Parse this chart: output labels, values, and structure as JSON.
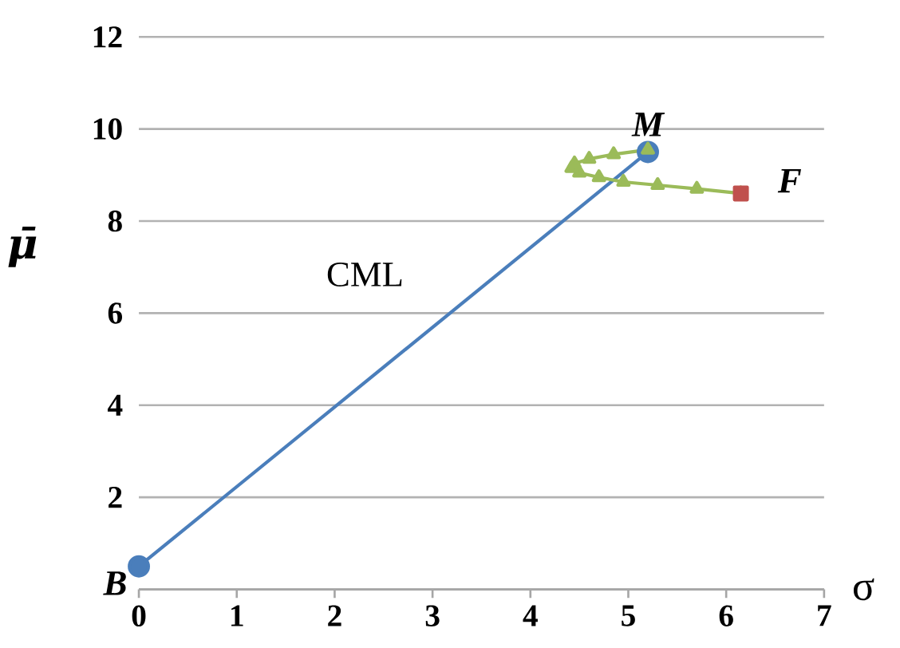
{
  "chart_data": {
    "type": "line",
    "xlabel": "σ",
    "ylabel": "μ̄",
    "xlim": [
      0,
      7
    ],
    "xticks": [
      0,
      1,
      2,
      3,
      4,
      5,
      6,
      7
    ],
    "ylim": [
      0,
      12
    ],
    "yticks": [
      {
        "value": 0,
        "label": null
      },
      2,
      4,
      6,
      8,
      10,
      12
    ],
    "grid": "y",
    "series": [
      {
        "color": "#4a7ebb",
        "marker": "circle",
        "x": [
          0,
          5.2
        ],
        "values": [
          0.5,
          9.5
        ]
      },
      {
        "type": "line",
        "color": "#9bbb59",
        "marker": "triangle",
        "x": [
          6.15,
          5.7,
          5.3,
          4.95,
          4.7,
          4.5,
          4.42,
          4.45,
          4.6,
          4.85,
          5.2
        ],
        "values": [
          8.6,
          8.7,
          8.78,
          8.85,
          8.95,
          9.05,
          9.15,
          9.25,
          9.35,
          9.45,
          9.55
        ]
      },
      {
        "type": "scatter",
        "color": "#c0504d",
        "marker": "square",
        "x": [
          6.15
        ],
        "values": [
          8.6
        ]
      }
    ],
    "annotations": [
      {
        "text": "M",
        "x": 5.2,
        "y": 9.5
      },
      {
        "text": "F",
        "x": 6.15,
        "y": 8.6
      },
      {
        "text": "B",
        "x": 0,
        "y": 0.5
      },
      "CML"
    ]
  }
}
